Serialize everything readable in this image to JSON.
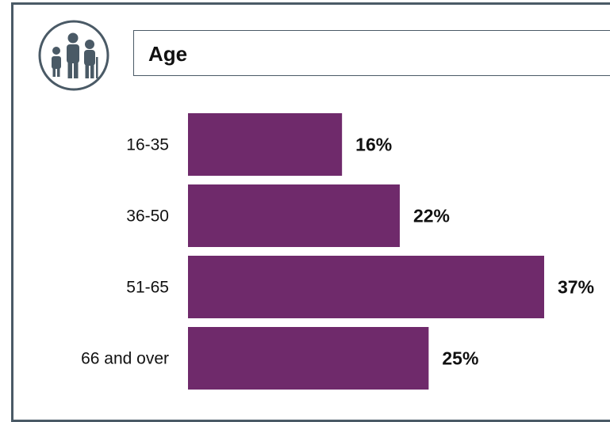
{
  "header": {
    "title": "Age",
    "icon": "family-icon"
  },
  "colors": {
    "bar": "#6f2a6b",
    "frame": "#4a5a66",
    "text": "#111111"
  },
  "chart_data": {
    "type": "bar",
    "orientation": "horizontal",
    "title": "Age",
    "categories": [
      "16-35",
      "36-50",
      "51-65",
      "66 and over"
    ],
    "values": [
      16,
      22,
      37,
      25
    ],
    "value_labels": [
      "16%",
      "22%",
      "37%",
      "25%"
    ],
    "xlim": [
      0,
      37
    ],
    "grid": false,
    "legend": "none"
  }
}
